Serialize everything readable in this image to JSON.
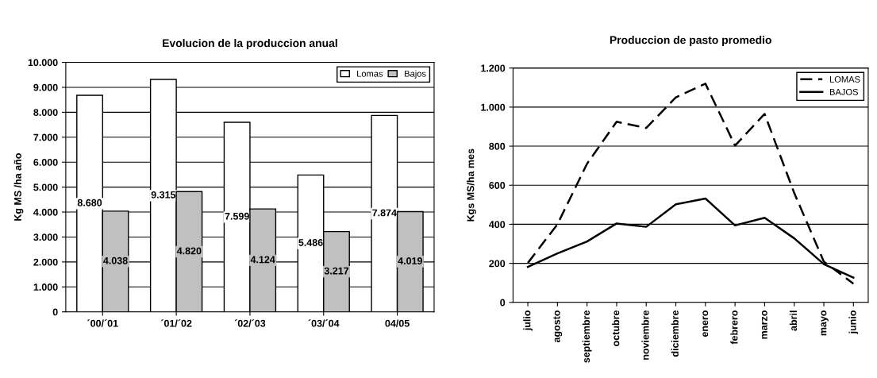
{
  "chart_data": [
    {
      "type": "bar",
      "title": "Evolucion de la produccion anual",
      "ylabel": "Kg MS /ha año",
      "categories": [
        "´00/´01",
        "´01/´02",
        "´02/´03",
        "´03/´04",
        "04/05"
      ],
      "series": [
        {
          "name": "Lomas",
          "color": "#ffffff",
          "values": [
            8680,
            9315,
            7599,
            5486,
            7874
          ],
          "value_labels": [
            "8.680",
            "9.315",
            "7.599",
            "5.486",
            "7.874"
          ]
        },
        {
          "name": "Bajos",
          "color": "#c0c0c0",
          "values": [
            4038,
            4820,
            4124,
            3217,
            4019
          ],
          "value_labels": [
            "4.038",
            "4.820",
            "4.124",
            "3.217",
            "4.019"
          ]
        }
      ],
      "ylim": [
        0,
        10000
      ],
      "yticks": [
        {
          "value": 0,
          "label": "0"
        },
        {
          "value": 1000,
          "label": "1.000"
        },
        {
          "value": 2000,
          "label": "2.000"
        },
        {
          "value": 3000,
          "label": "3.000"
        },
        {
          "value": 4000,
          "label": "4.000"
        },
        {
          "value": 5000,
          "label": "5.000"
        },
        {
          "value": 6000,
          "label": "6.000"
        },
        {
          "value": 7000,
          "label": "7.000"
        },
        {
          "value": 8000,
          "label": "8.000"
        },
        {
          "value": 9000,
          "label": "9.000"
        },
        {
          "value": 10000,
          "label": "10.000"
        }
      ],
      "grid": "y",
      "legend": "top right"
    },
    {
      "type": "line",
      "title": "Produccion de pasto promedio",
      "ylabel": "Kgs MS/ha mes",
      "categories": [
        "julio",
        "agosto",
        "septiembre",
        "octubre",
        "noviembre",
        "diciembre",
        "enero",
        "febrero",
        "marzo",
        "abril",
        "mayo",
        "junio"
      ],
      "series": [
        {
          "name": "LOMAS",
          "color": "#000000",
          "line_style": "dashed",
          "values": [
            202,
            400,
            710,
            925,
            893,
            1050,
            1120,
            803,
            965,
            560,
            209,
            96
          ]
        },
        {
          "name": "BAJOS",
          "color": "#000000",
          "line_style": "solid",
          "values": [
            182,
            251,
            312,
            404,
            387,
            502,
            532,
            394,
            433,
            328,
            196,
            127
          ]
        }
      ],
      "ylim": [
        0,
        1200
      ],
      "yticks": [
        {
          "value": 0,
          "label": "0"
        },
        {
          "value": 200,
          "label": "200"
        },
        {
          "value": 400,
          "label": "400"
        },
        {
          "value": 600,
          "label": "600"
        },
        {
          "value": 800,
          "label": "800"
        },
        {
          "value": 1000,
          "label": "1.000"
        },
        {
          "value": 1200,
          "label": "1.200"
        }
      ],
      "grid": "y",
      "legend": "top right",
      "marker": "none"
    }
  ]
}
